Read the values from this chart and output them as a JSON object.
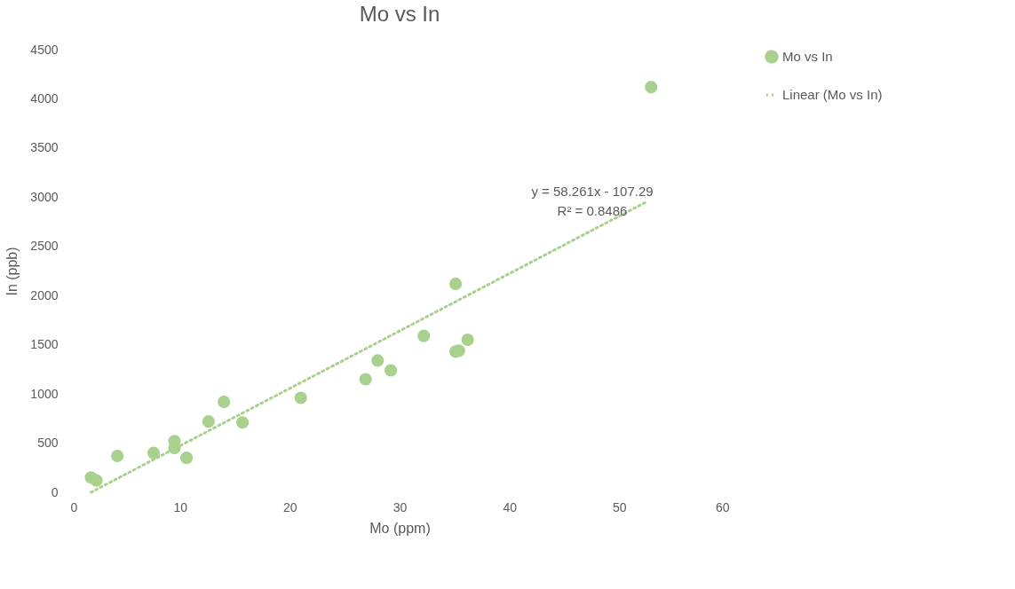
{
  "chart_data": {
    "type": "scatter",
    "title": "Mo vs In",
    "xlabel": "Mo (ppm)",
    "ylabel": "In (ppb)",
    "xlim": [
      0,
      60
    ],
    "xticks": [
      0,
      10,
      20,
      30,
      40,
      50,
      60
    ],
    "ylim": [
      0,
      4500
    ],
    "yticks": [
      0,
      500,
      1000,
      1500,
      2000,
      2500,
      3000,
      3500,
      4000,
      4500
    ],
    "grid": false,
    "legend": "right",
    "series": [
      {
        "name": "Mo vs In",
        "marker": "circle",
        "color": "#a9d18e",
        "x": [
          1.9,
          2.4,
          4.3,
          7.6,
          9.5,
          9.5,
          10.6,
          12.6,
          14.0,
          15.7,
          21.0,
          26.9,
          28.0,
          29.2,
          32.2,
          35.1,
          35.1,
          35.4,
          36.2,
          52.9
        ],
        "values": [
          150,
          120,
          370,
          400,
          520,
          450,
          350,
          720,
          920,
          710,
          960,
          1150,
          1340,
          1240,
          1590,
          2120,
          1430,
          1440,
          1550,
          4120
        ]
      },
      {
        "name": "Linear (Mo vs In)",
        "type": "line",
        "line_style": "dotted",
        "color": "#a9d18e",
        "x": [
          1.9,
          52.6
        ],
        "values": [
          0,
          2960
        ]
      }
    ],
    "annotations": [
      "y = 58.261x - 107.29",
      "R² = 0.8486"
    ]
  }
}
